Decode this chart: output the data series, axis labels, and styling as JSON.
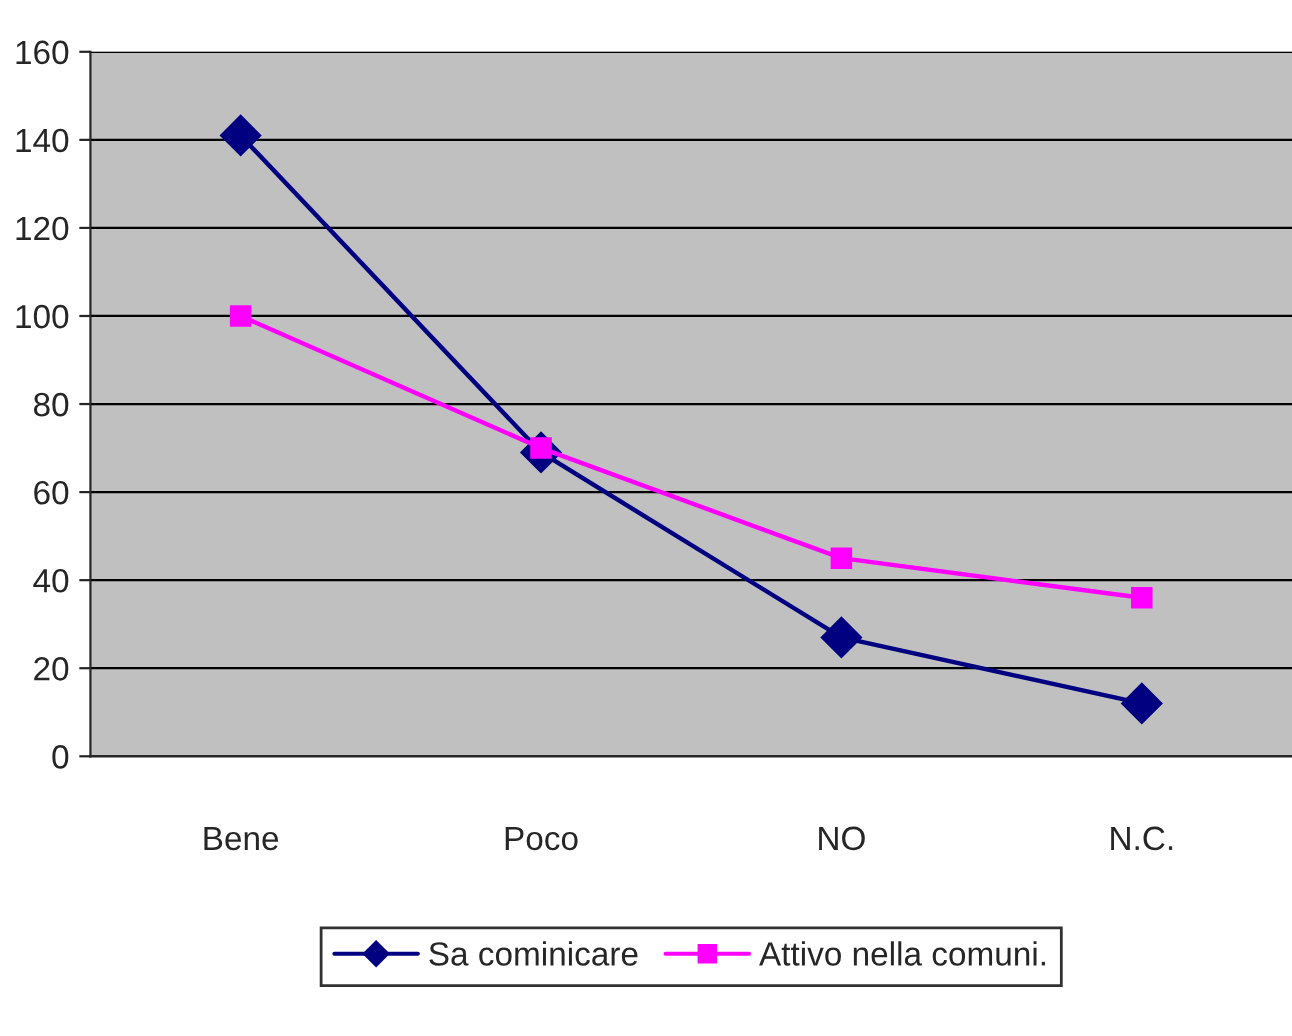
{
  "chart_data": {
    "type": "line",
    "categories": [
      "Bene",
      "Poco",
      "NO",
      "N.C."
    ],
    "series": [
      {
        "name": "Sa cominicare",
        "color": "#000080",
        "values": [
          141,
          69,
          27,
          12
        ],
        "marker": "diamond"
      },
      {
        "name": "Attivo nella comuni.",
        "color": "#ff00ff",
        "values": [
          100,
          70,
          45,
          36
        ],
        "marker": "square"
      }
    ],
    "ylim": [
      0,
      160
    ],
    "yticks": [
      0,
      20,
      40,
      60,
      80,
      100,
      120,
      140,
      160
    ],
    "grid": "y",
    "legend": "bottom"
  }
}
